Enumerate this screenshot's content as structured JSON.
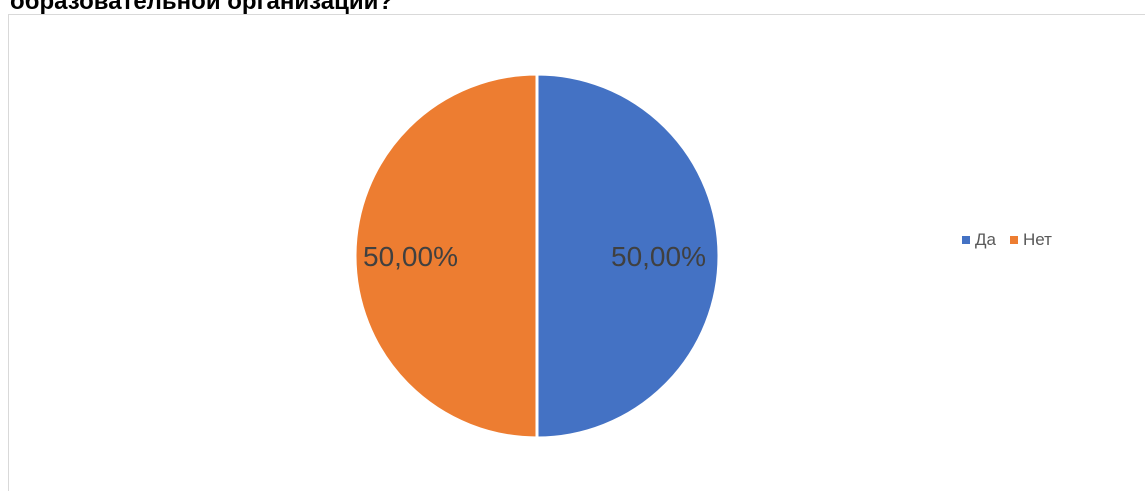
{
  "heading": "образовательной организации?",
  "chart_data": {
    "type": "pie",
    "categories": [
      "Да",
      "Нет"
    ],
    "values": [
      50.0,
      50.0
    ],
    "data_labels": [
      "50,00%",
      "50,00%"
    ],
    "colors": [
      "#4472c4",
      "#ed7d31"
    ],
    "legend_position": "right"
  }
}
